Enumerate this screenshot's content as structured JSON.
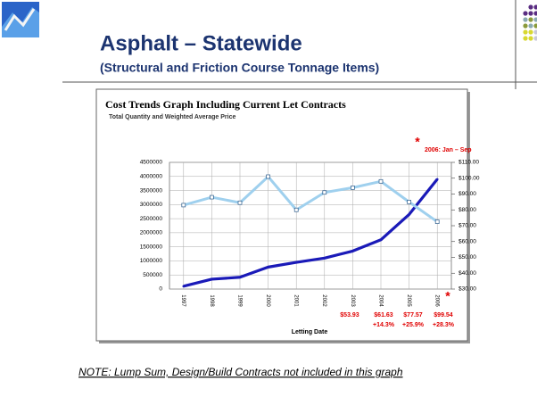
{
  "slide": {
    "title": "Asphalt – Statewide",
    "subtitle": "(Structural and Friction Course Tonnage Items)",
    "note": "NOTE:  Lump Sum, Design/Build Contracts not included in this graph"
  },
  "chart_data": {
    "type": "line",
    "title": "Cost Trends Graph Including Current Let Contracts",
    "subtitle": "Total Quantity and Weighted Average Price",
    "x_label": "Letting Date",
    "categories": [
      "1997",
      "1998",
      "1999",
      "2000",
      "2001",
      "2002",
      "2003",
      "2004",
      "2005",
      "2006"
    ],
    "series": [
      {
        "color": "#1a1ab8",
        "values": [
          100000,
          350000,
          420000,
          780000,
          950000,
          1100000,
          1350000,
          1750000,
          2650000,
          3900000
        ]
      },
      {
        "color": "#9fd0ee",
        "axis": "y2",
        "values": [
          83,
          88,
          84.5,
          101,
          80,
          91,
          94,
          98,
          85,
          72.5
        ]
      }
    ],
    "ylim": [
      0,
      4500000
    ],
    "yticks": [
      0,
      500000,
      1000000,
      1500000,
      2000000,
      2500000,
      3000000,
      3500000,
      4000000,
      4500000
    ],
    "y2lim": [
      30,
      110
    ],
    "y2ticks": [
      {
        "value": 30,
        "label": "$30.00"
      },
      {
        "value": 40,
        "label": "$40.00"
      },
      {
        "value": 50,
        "label": "$50.00"
      },
      {
        "value": 60,
        "label": "$60.00"
      },
      {
        "value": 70,
        "label": "$70.00"
      },
      {
        "value": 80,
        "label": "$80.00"
      },
      {
        "value": 90,
        "label": "$90.00"
      },
      {
        "value": 100,
        "label": "$100.00"
      },
      {
        "value": 110,
        "label": "$110.00"
      }
    ],
    "grid": true,
    "annotations": [
      "*",
      "2006: Jan – Sep",
      "*",
      "$53.93",
      "$61.63",
      "$77.57",
      "$99.54",
      "+14.3%",
      "+25.9%",
      "+28.3%"
    ]
  }
}
